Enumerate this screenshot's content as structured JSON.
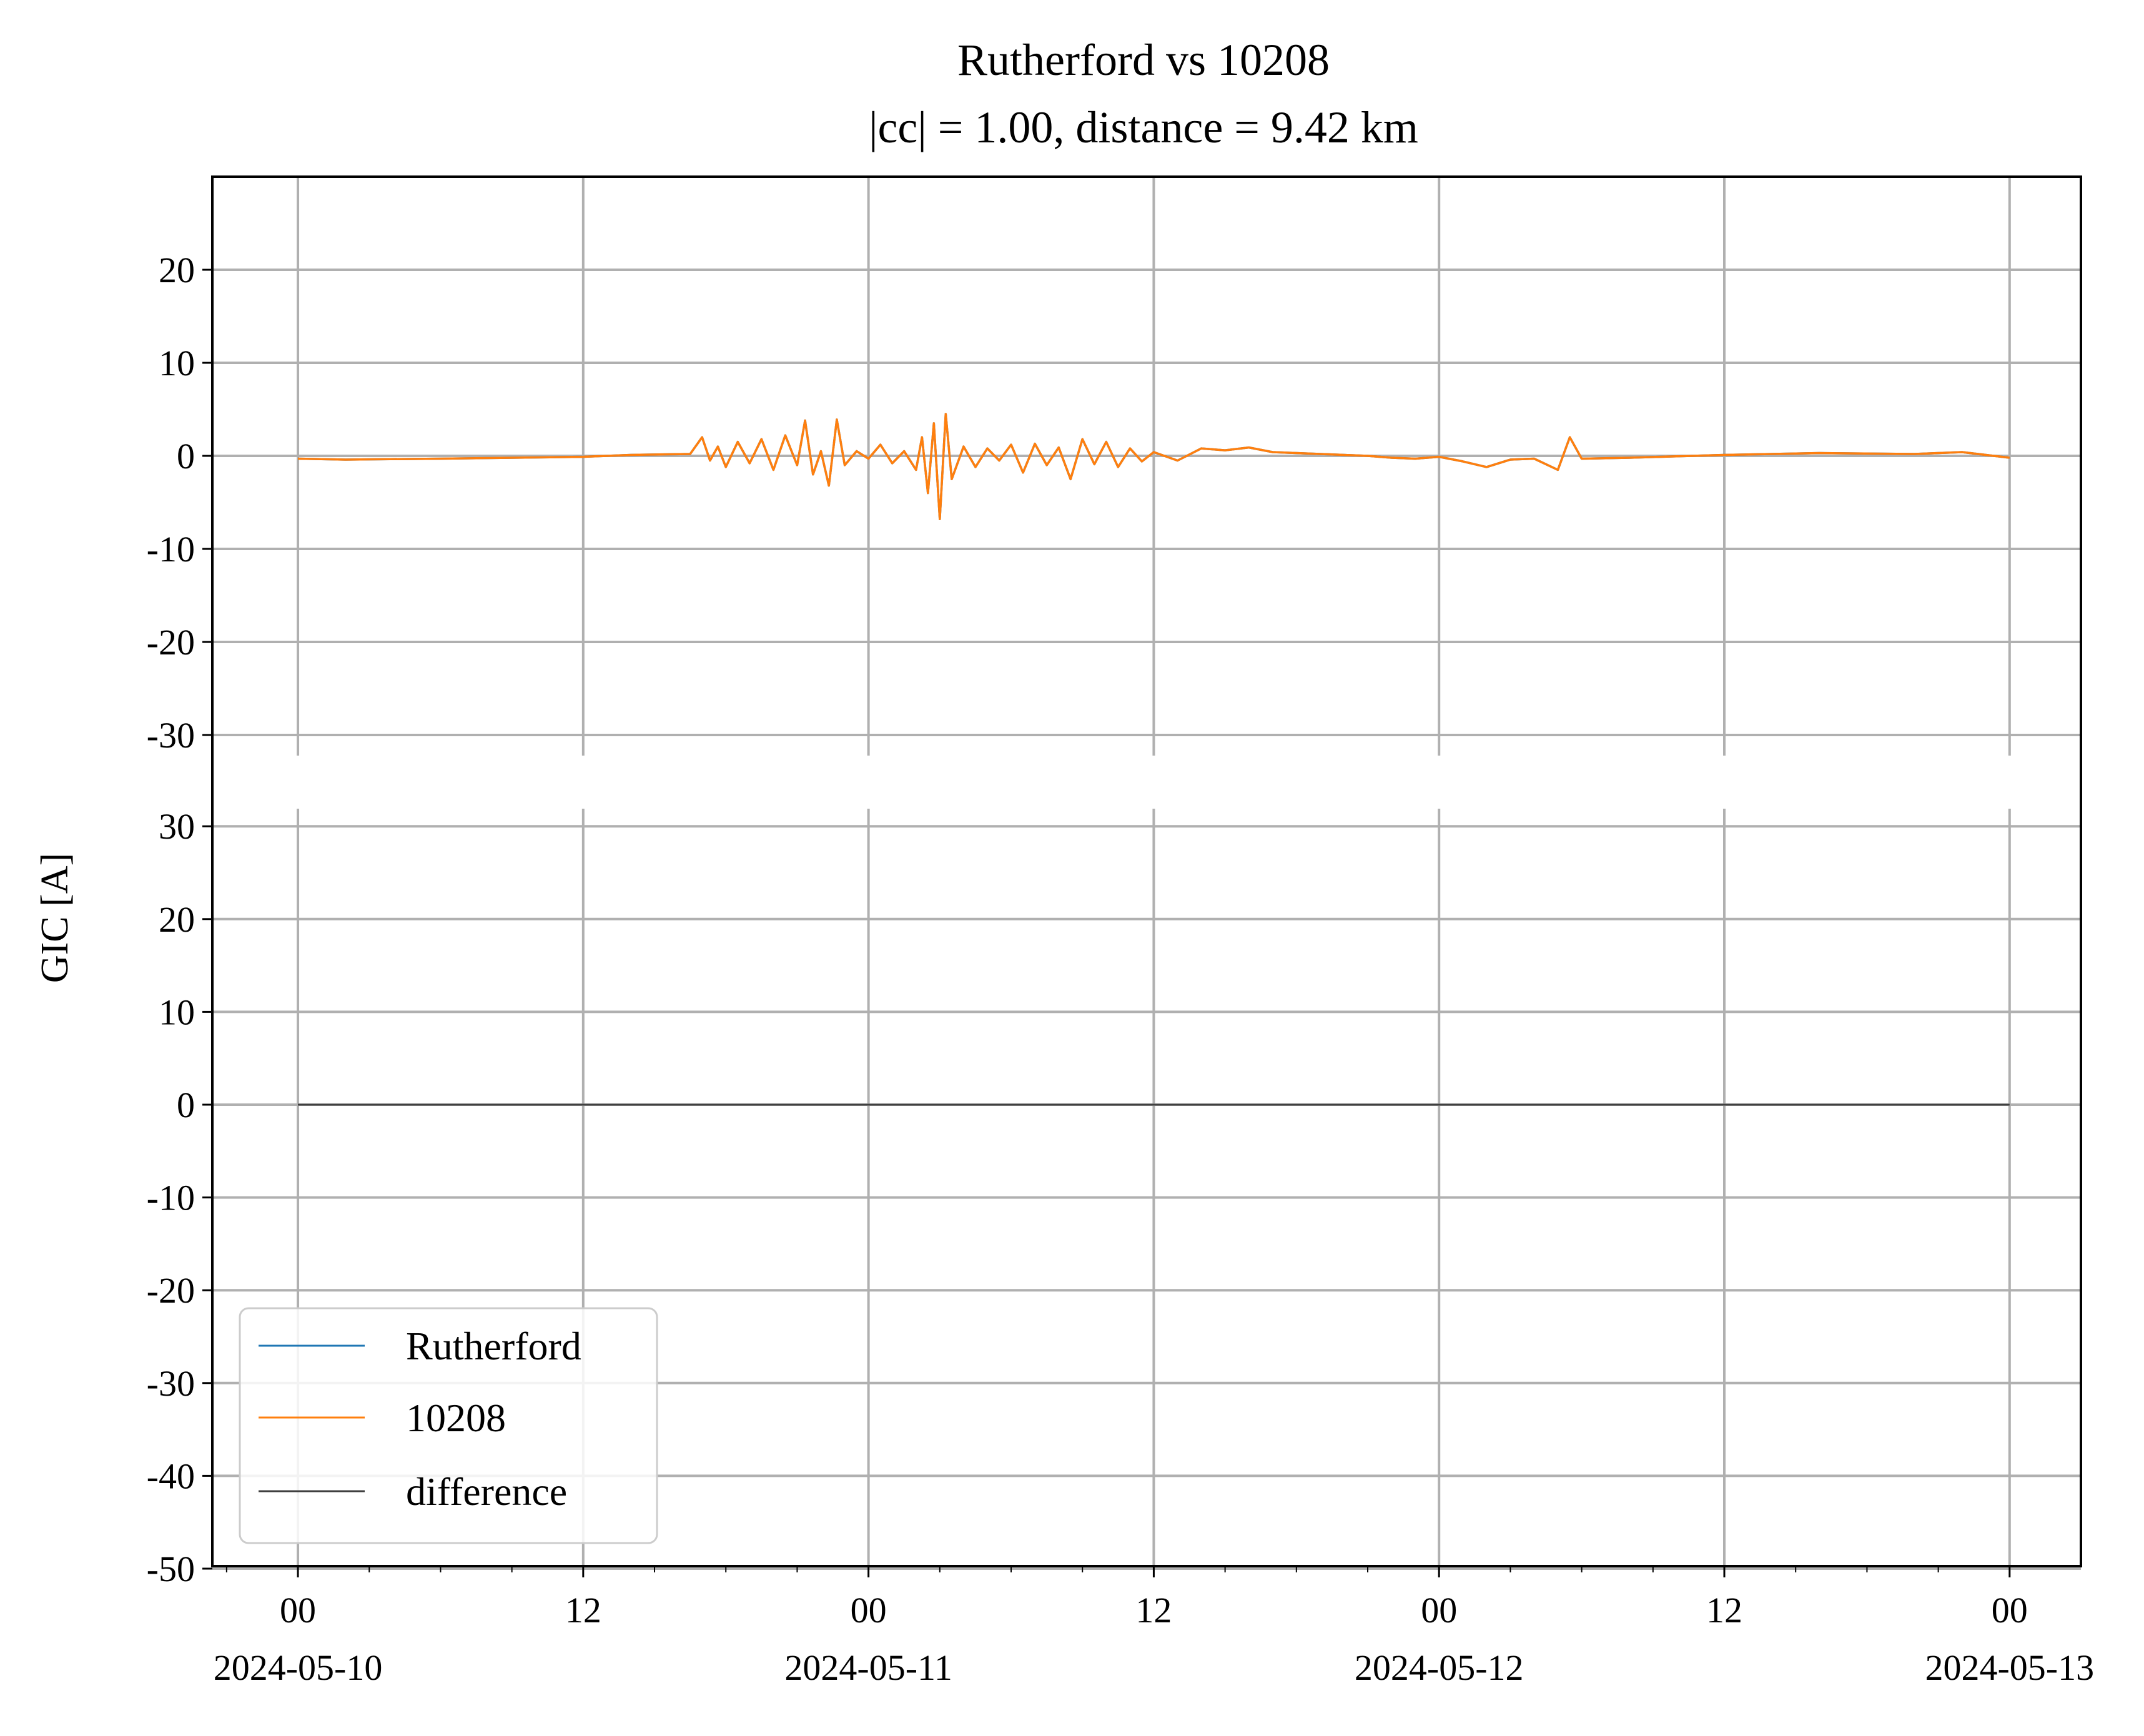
{
  "chart_data": {
    "type": "line",
    "title": "Rutherford vs 10208",
    "subtitle": "|cc| = 1.00, distance = 9.42 km",
    "ylabel": "GIC [A]",
    "xlabel": "",
    "xlim": [
      "2024-05-09T20:24",
      "2024-05-13T03:00"
    ],
    "x_ticks": [
      {
        "value": "2024-05-10T00:00",
        "label": "00",
        "date_label": "2024-05-10"
      },
      {
        "value": "2024-05-10T12:00",
        "label": "12",
        "date_label": ""
      },
      {
        "value": "2024-05-11T00:00",
        "label": "00",
        "date_label": "2024-05-11"
      },
      {
        "value": "2024-05-11T12:00",
        "label": "12",
        "date_label": ""
      },
      {
        "value": "2024-05-12T00:00",
        "label": "00",
        "date_label": "2024-05-12"
      },
      {
        "value": "2024-05-12T12:00",
        "label": "12",
        "date_label": ""
      },
      {
        "value": "2024-05-13T00:00",
        "label": "00",
        "date_label": "2024-05-13"
      }
    ],
    "minor_tick_hours": 3,
    "grid": true,
    "panels": [
      {
        "ylim": [
          -32,
          30
        ],
        "yticks": [
          20,
          10,
          0,
          -10,
          -20,
          -30
        ],
        "yticklabels": [
          "20",
          "10",
          "0",
          "-10",
          "-20",
          "-30"
        ],
        "series": [
          {
            "name": "Rutherford",
            "color": "#1f77b4",
            "x": [
              "2024-05-10T00:00",
              "2024-05-10T02:00",
              "2024-05-10T06:00",
              "2024-05-10T12:00",
              "2024-05-10T14:00",
              "2024-05-10T16:30",
              "2024-05-10T17:00",
              "2024-05-10T17:20",
              "2024-05-10T17:40",
              "2024-05-10T18:00",
              "2024-05-10T18:30",
              "2024-05-10T19:00",
              "2024-05-10T19:30",
              "2024-05-10T20:00",
              "2024-05-10T20:30",
              "2024-05-10T21:00",
              "2024-05-10T21:20",
              "2024-05-10T21:40",
              "2024-05-10T22:00",
              "2024-05-10T22:20",
              "2024-05-10T22:40",
              "2024-05-10T23:00",
              "2024-05-10T23:30",
              "2024-05-11T00:00",
              "2024-05-11T00:30",
              "2024-05-11T01:00",
              "2024-05-11T01:30",
              "2024-05-11T02:00",
              "2024-05-11T02:15",
              "2024-05-11T02:30",
              "2024-05-11T02:45",
              "2024-05-11T03:00",
              "2024-05-11T03:15",
              "2024-05-11T03:30",
              "2024-05-11T04:00",
              "2024-05-11T04:30",
              "2024-05-11T05:00",
              "2024-05-11T05:30",
              "2024-05-11T06:00",
              "2024-05-11T06:30",
              "2024-05-11T07:00",
              "2024-05-11T07:30",
              "2024-05-11T08:00",
              "2024-05-11T08:30",
              "2024-05-11T09:00",
              "2024-05-11T09:30",
              "2024-05-11T10:00",
              "2024-05-11T10:30",
              "2024-05-11T11:00",
              "2024-05-11T11:30",
              "2024-05-11T12:00",
              "2024-05-11T13:00",
              "2024-05-11T14:00",
              "2024-05-11T15:00",
              "2024-05-11T16:00",
              "2024-05-11T17:00",
              "2024-05-11T18:00",
              "2024-05-11T19:00",
              "2024-05-11T20:00",
              "2024-05-11T21:00",
              "2024-05-11T22:00",
              "2024-05-11T23:00",
              "2024-05-12T00:00",
              "2024-05-12T01:00",
              "2024-05-12T02:00",
              "2024-05-12T03:00",
              "2024-05-12T04:00",
              "2024-05-12T05:00",
              "2024-05-12T05:30",
              "2024-05-12T06:00",
              "2024-05-12T08:00",
              "2024-05-12T12:00",
              "2024-05-12T16:00",
              "2024-05-12T20:00",
              "2024-05-12T21:00",
              "2024-05-12T22:00",
              "2024-05-12T23:00",
              "2024-05-13T00:00"
            ],
            "y": [
              -0.3,
              -0.4,
              -0.3,
              -0.1,
              0.1,
              0.2,
              2.0,
              -0.5,
              1.0,
              -1.2,
              1.5,
              -0.8,
              1.8,
              -1.5,
              2.2,
              -1.0,
              3.8,
              -2.0,
              0.5,
              -3.2,
              3.9,
              -1.0,
              0.5,
              -0.3,
              1.2,
              -0.8,
              0.5,
              -1.5,
              2.0,
              -4.0,
              3.5,
              -6.8,
              4.5,
              -2.5,
              1.0,
              -1.2,
              0.8,
              -0.5,
              1.2,
              -1.8,
              1.3,
              -1.0,
              0.9,
              -2.5,
              1.8,
              -0.9,
              1.5,
              -1.2,
              0.8,
              -0.6,
              0.4,
              -0.5,
              0.8,
              0.6,
              0.9,
              0.4,
              0.3,
              0.2,
              0.1,
              0.0,
              -0.2,
              -0.3,
              -0.1,
              -0.6,
              -1.2,
              -0.4,
              -0.3,
              -1.5,
              2.0,
              -0.3,
              -0.2,
              0.1,
              0.3,
              0.2,
              0.3,
              0.4,
              0.1,
              -0.2
            ]
          },
          {
            "name": "10208",
            "color": "#ff7f0e",
            "x": [
              "2024-05-10T00:00",
              "2024-05-10T02:00",
              "2024-05-10T06:00",
              "2024-05-10T12:00",
              "2024-05-10T14:00",
              "2024-05-10T16:30",
              "2024-05-10T17:00",
              "2024-05-10T17:20",
              "2024-05-10T17:40",
              "2024-05-10T18:00",
              "2024-05-10T18:30",
              "2024-05-10T19:00",
              "2024-05-10T19:30",
              "2024-05-10T20:00",
              "2024-05-10T20:30",
              "2024-05-10T21:00",
              "2024-05-10T21:20",
              "2024-05-10T21:40",
              "2024-05-10T22:00",
              "2024-05-10T22:20",
              "2024-05-10T22:40",
              "2024-05-10T23:00",
              "2024-05-10T23:30",
              "2024-05-11T00:00",
              "2024-05-11T00:30",
              "2024-05-11T01:00",
              "2024-05-11T01:30",
              "2024-05-11T02:00",
              "2024-05-11T02:15",
              "2024-05-11T02:30",
              "2024-05-11T02:45",
              "2024-05-11T03:00",
              "2024-05-11T03:15",
              "2024-05-11T03:30",
              "2024-05-11T04:00",
              "2024-05-11T04:30",
              "2024-05-11T05:00",
              "2024-05-11T05:30",
              "2024-05-11T06:00",
              "2024-05-11T06:30",
              "2024-05-11T07:00",
              "2024-05-11T07:30",
              "2024-05-11T08:00",
              "2024-05-11T08:30",
              "2024-05-11T09:00",
              "2024-05-11T09:30",
              "2024-05-11T10:00",
              "2024-05-11T10:30",
              "2024-05-11T11:00",
              "2024-05-11T11:30",
              "2024-05-11T12:00",
              "2024-05-11T13:00",
              "2024-05-11T14:00",
              "2024-05-11T15:00",
              "2024-05-11T16:00",
              "2024-05-11T17:00",
              "2024-05-11T18:00",
              "2024-05-11T19:00",
              "2024-05-11T20:00",
              "2024-05-11T21:00",
              "2024-05-11T22:00",
              "2024-05-11T23:00",
              "2024-05-12T00:00",
              "2024-05-12T01:00",
              "2024-05-12T02:00",
              "2024-05-12T03:00",
              "2024-05-12T04:00",
              "2024-05-12T05:00",
              "2024-05-12T05:30",
              "2024-05-12T06:00",
              "2024-05-12T08:00",
              "2024-05-12T12:00",
              "2024-05-12T16:00",
              "2024-05-12T20:00",
              "2024-05-12T21:00",
              "2024-05-12T22:00",
              "2024-05-12T23:00",
              "2024-05-13T00:00"
            ],
            "y": [
              -0.3,
              -0.4,
              -0.3,
              -0.1,
              0.1,
              0.2,
              2.0,
              -0.5,
              1.0,
              -1.2,
              1.5,
              -0.8,
              1.8,
              -1.5,
              2.2,
              -1.0,
              3.8,
              -2.0,
              0.5,
              -3.2,
              3.9,
              -1.0,
              0.5,
              -0.3,
              1.2,
              -0.8,
              0.5,
              -1.5,
              2.0,
              -4.0,
              3.5,
              -6.8,
              4.5,
              -2.5,
              1.0,
              -1.2,
              0.8,
              -0.5,
              1.2,
              -1.8,
              1.3,
              -1.0,
              0.9,
              -2.5,
              1.8,
              -0.9,
              1.5,
              -1.2,
              0.8,
              -0.6,
              0.4,
              -0.5,
              0.8,
              0.6,
              0.9,
              0.4,
              0.3,
              0.2,
              0.1,
              0.0,
              -0.2,
              -0.3,
              -0.1,
              -0.6,
              -1.2,
              -0.4,
              -0.3,
              -1.5,
              2.0,
              -0.3,
              -0.2,
              0.1,
              0.3,
              0.2,
              0.3,
              0.4,
              0.1,
              -0.2
            ]
          }
        ]
      },
      {
        "ylim": [
          -50,
          33
        ],
        "yticks": [
          30,
          20,
          10,
          0,
          -10,
          -20,
          -30,
          -40,
          -50
        ],
        "yticklabels": [
          "30",
          "20",
          "10",
          "0",
          "-10",
          "-20",
          "-30",
          "-40",
          "-50"
        ],
        "series": [
          {
            "name": "difference",
            "color": "#404040",
            "x": [
              "2024-05-10T00:00",
              "2024-05-13T00:00"
            ],
            "y": [
              0,
              0
            ]
          }
        ]
      }
    ],
    "legend": {
      "placement": "lower-left",
      "entries": [
        {
          "label": "Rutherford",
          "color": "#1f77b4"
        },
        {
          "label": "10208",
          "color": "#ff7f0e"
        },
        {
          "label": "difference",
          "color": "#404040"
        }
      ]
    }
  }
}
